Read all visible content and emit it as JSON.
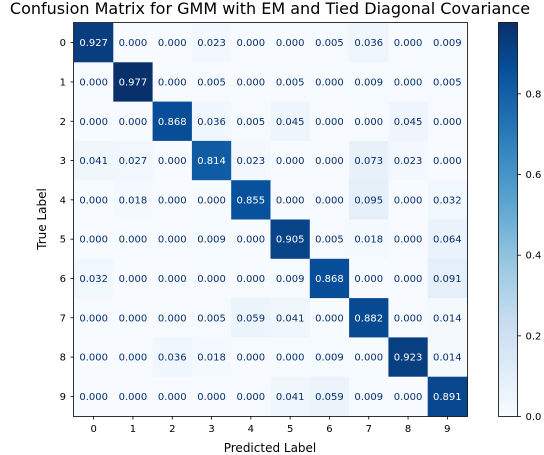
{
  "chart_data": {
    "type": "heatmap",
    "title": "Confusion Matrix for GMM with EM and Tied Diagonal Covariance",
    "xlabel": "Predicted Label",
    "ylabel": "True Label",
    "x_categories": [
      "0",
      "1",
      "2",
      "3",
      "4",
      "5",
      "6",
      "7",
      "8",
      "9"
    ],
    "y_categories": [
      "0",
      "1",
      "2",
      "3",
      "4",
      "5",
      "6",
      "7",
      "8",
      "9"
    ],
    "values": [
      [
        "0.927",
        "0.000",
        "0.000",
        "0.023",
        "0.000",
        "0.000",
        "0.005",
        "0.036",
        "0.000",
        "0.009"
      ],
      [
        "0.000",
        "0.977",
        "0.000",
        "0.005",
        "0.000",
        "0.005",
        "0.000",
        "0.009",
        "0.000",
        "0.005"
      ],
      [
        "0.000",
        "0.000",
        "0.868",
        "0.036",
        "0.005",
        "0.045",
        "0.000",
        "0.000",
        "0.045",
        "0.000"
      ],
      [
        "0.041",
        "0.027",
        "0.000",
        "0.814",
        "0.023",
        "0.000",
        "0.000",
        "0.073",
        "0.023",
        "0.000"
      ],
      [
        "0.000",
        "0.018",
        "0.000",
        "0.000",
        "0.855",
        "0.000",
        "0.000",
        "0.095",
        "0.000",
        "0.032"
      ],
      [
        "0.000",
        "0.000",
        "0.000",
        "0.009",
        "0.000",
        "0.905",
        "0.005",
        "0.018",
        "0.000",
        "0.064"
      ],
      [
        "0.032",
        "0.000",
        "0.000",
        "0.000",
        "0.000",
        "0.009",
        "0.868",
        "0.000",
        "0.000",
        "0.091"
      ],
      [
        "0.000",
        "0.000",
        "0.000",
        "0.005",
        "0.059",
        "0.041",
        "0.000",
        "0.882",
        "0.000",
        "0.014"
      ],
      [
        "0.000",
        "0.000",
        "0.036",
        "0.018",
        "0.000",
        "0.000",
        "0.009",
        "0.000",
        "0.923",
        "0.014"
      ],
      [
        "0.000",
        "0.000",
        "0.000",
        "0.000",
        "0.000",
        "0.041",
        "0.059",
        "0.009",
        "0.000",
        "0.891"
      ]
    ],
    "colormap": "Blues",
    "color_range": [
      0.0,
      0.977
    ],
    "colorbar_ticks": [
      "0.0",
      "0.2",
      "0.4",
      "0.6",
      "0.8"
    ],
    "text_color_light": "#ffffff",
    "text_color_dark": "#08306b"
  }
}
